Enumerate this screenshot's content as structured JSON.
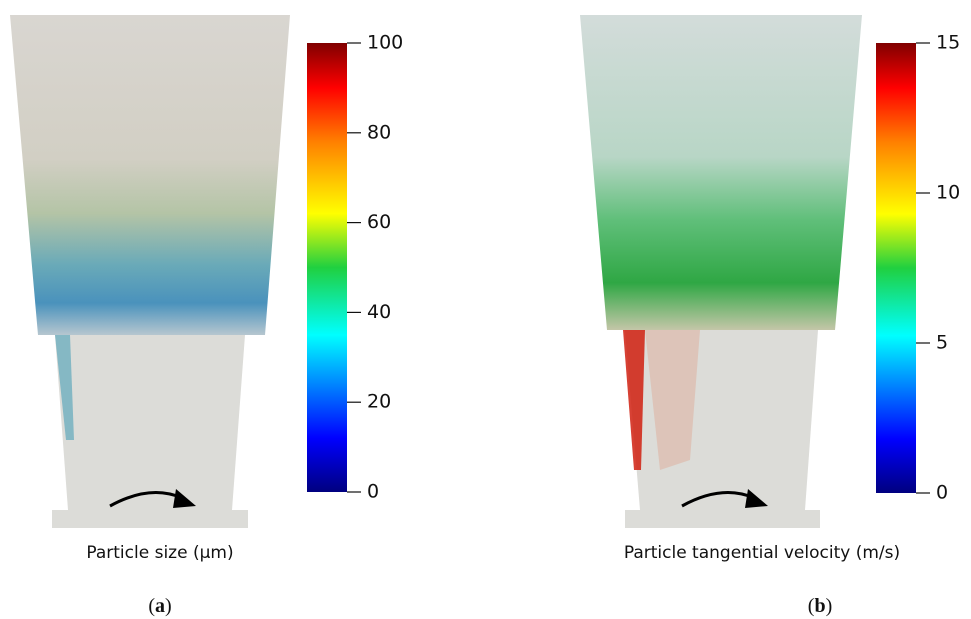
{
  "panels": [
    {
      "caption": "Particle size (μm)",
      "label": {
        "open": "(",
        "letter": "a",
        "close": ")"
      },
      "colorbar": {
        "lim": [
          0,
          100
        ],
        "ticks": [
          0,
          20,
          40,
          60,
          80,
          100
        ]
      }
    },
    {
      "caption": "Particle tangential velocity (m/s)",
      "label": {
        "open": "(",
        "letter": "b",
        "close": ")"
      },
      "colorbar": {
        "lim": [
          0,
          15
        ],
        "ticks": [
          0,
          5,
          10,
          15
        ]
      }
    }
  ]
}
